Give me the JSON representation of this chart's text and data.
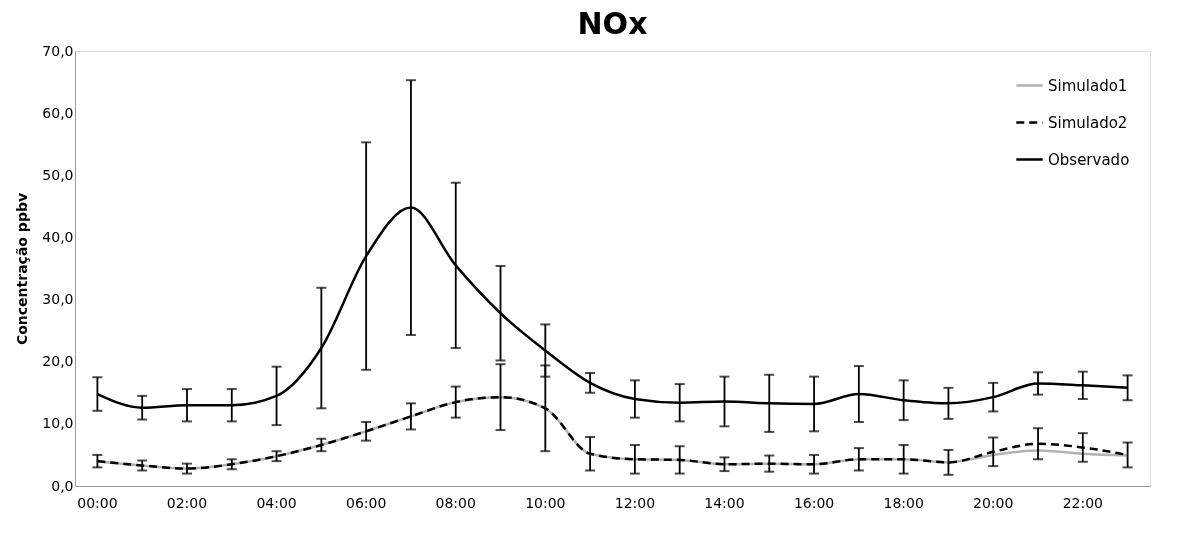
{
  "chart_data": {
    "type": "line",
    "title": "NOx",
    "ylabel": "Concentração ppbv",
    "categories": [
      "00:00",
      null,
      "02:00",
      null,
      "04:00",
      null,
      "06:00",
      null,
      "08:00",
      null,
      "10:00",
      null,
      "12:00",
      null,
      "14:00",
      null,
      "16:00",
      null,
      "18:00",
      null,
      "20:00",
      null,
      "22:00",
      null
    ],
    "series": [
      {
        "name": "Simulado1",
        "color": "#b3b3b3",
        "line_style": "solid",
        "values": [
          4.0,
          3.3,
          2.8,
          3.5,
          4.8,
          6.6,
          8.8,
          11.2,
          13.5,
          14.3,
          12.5,
          5.2,
          4.3,
          4.2,
          3.5,
          3.6,
          3.5,
          4.3,
          4.3,
          3.8,
          5.0,
          5.7,
          5.2,
          4.9
        ]
      },
      {
        "name": "Simulado2",
        "color": "#000000",
        "line_style": "dashed",
        "values": [
          4.0,
          3.3,
          2.8,
          3.5,
          4.8,
          6.6,
          8.8,
          11.2,
          13.5,
          14.3,
          12.5,
          5.2,
          4.3,
          4.2,
          3.5,
          3.6,
          3.5,
          4.3,
          4.3,
          3.8,
          5.5,
          6.8,
          6.2,
          5.0
        ],
        "errors": [
          1.0,
          0.8,
          0.8,
          0.8,
          0.8,
          1.0,
          1.5,
          2.1,
          2.5,
          5.3,
          6.9,
          2.7,
          2.3,
          2.2,
          1.1,
          1.3,
          1.5,
          1.8,
          2.3,
          2.0,
          2.3,
          2.5,
          2.3,
          2.0
        ]
      },
      {
        "name": "Observado",
        "color": "#000000",
        "line_style": "solid",
        "values": [
          14.8,
          12.6,
          13.0,
          13.0,
          14.5,
          22.2,
          37.0,
          44.8,
          35.5,
          27.8,
          21.8,
          16.6,
          14.0,
          13.4,
          13.6,
          13.3,
          13.2,
          14.8,
          13.8,
          13.3,
          14.3,
          16.5,
          16.2,
          15.8
        ],
        "errors": [
          2.7,
          1.9,
          2.6,
          2.6,
          4.7,
          9.7,
          18.3,
          20.5,
          13.3,
          7.6,
          4.2,
          1.6,
          3.0,
          3.0,
          4.0,
          4.6,
          4.4,
          4.5,
          3.2,
          2.5,
          2.3,
          1.8,
          2.2,
          2.0
        ]
      }
    ],
    "ylim": [
      0,
      70
    ],
    "yticks": [
      {
        "value": 0,
        "label": "0,0"
      },
      {
        "value": 10,
        "label": "10,0"
      },
      {
        "value": 20,
        "label": "20,0"
      },
      {
        "value": 30,
        "label": "30,0"
      },
      {
        "value": 40,
        "label": "40,0"
      },
      {
        "value": 50,
        "label": "50,0"
      },
      {
        "value": 60,
        "label": "60,0"
      },
      {
        "value": 70,
        "label": "70,0"
      }
    ],
    "grid": false,
    "legend": "top right",
    "marker": "none"
  }
}
